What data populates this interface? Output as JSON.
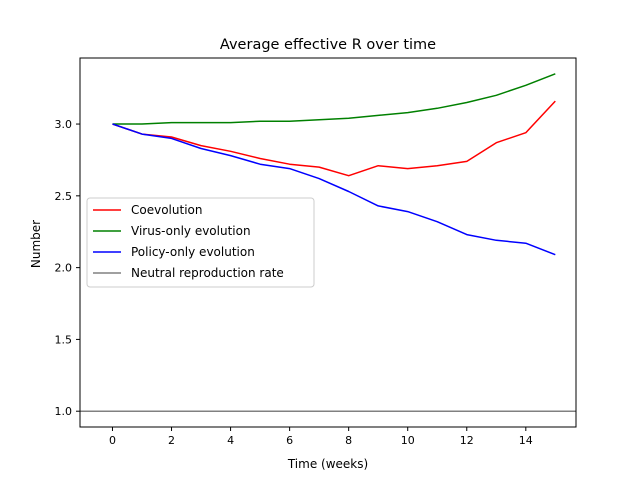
{
  "chart_data": {
    "type": "line",
    "title": "Average effective R over time",
    "xlabel": "Time (weeks)",
    "ylabel": "Number",
    "xlim": [
      -1.1,
      15.7
    ],
    "ylim": [
      0.89,
      3.46
    ],
    "xticks": [
      0,
      2,
      4,
      6,
      8,
      10,
      12,
      14
    ],
    "yticks": [
      1.0,
      1.5,
      2.0,
      2.5,
      3.0
    ],
    "ytick_labels": [
      "1.0",
      "1.5",
      "2.0",
      "2.5",
      "3.0"
    ],
    "grid": false,
    "legend_position": "center-left",
    "x": [
      0,
      1,
      2,
      3,
      4,
      5,
      6,
      7,
      8,
      9,
      10,
      11,
      12,
      13,
      14,
      15
    ],
    "series": [
      {
        "name": "Coevolution",
        "color": "#ff0000",
        "values": [
          3.0,
          2.93,
          2.91,
          2.85,
          2.81,
          2.76,
          2.72,
          2.7,
          2.64,
          2.71,
          2.69,
          2.71,
          2.74,
          2.87,
          2.94,
          3.16
        ]
      },
      {
        "name": "Virus-only evolution",
        "color": "#008000",
        "values": [
          3.0,
          3.0,
          3.01,
          3.01,
          3.01,
          3.02,
          3.02,
          3.03,
          3.04,
          3.06,
          3.08,
          3.11,
          3.15,
          3.2,
          3.27,
          3.35
        ]
      },
      {
        "name": "Policy-only evolution",
        "color": "#0000ff",
        "values": [
          3.0,
          2.93,
          2.9,
          2.83,
          2.78,
          2.72,
          2.69,
          2.62,
          2.53,
          2.43,
          2.39,
          2.32,
          2.23,
          2.19,
          2.17,
          2.09
        ]
      }
    ],
    "hlines": [
      {
        "name": "Neutral reproduction rate",
        "color": "#808080",
        "value": 1.0
      }
    ]
  }
}
